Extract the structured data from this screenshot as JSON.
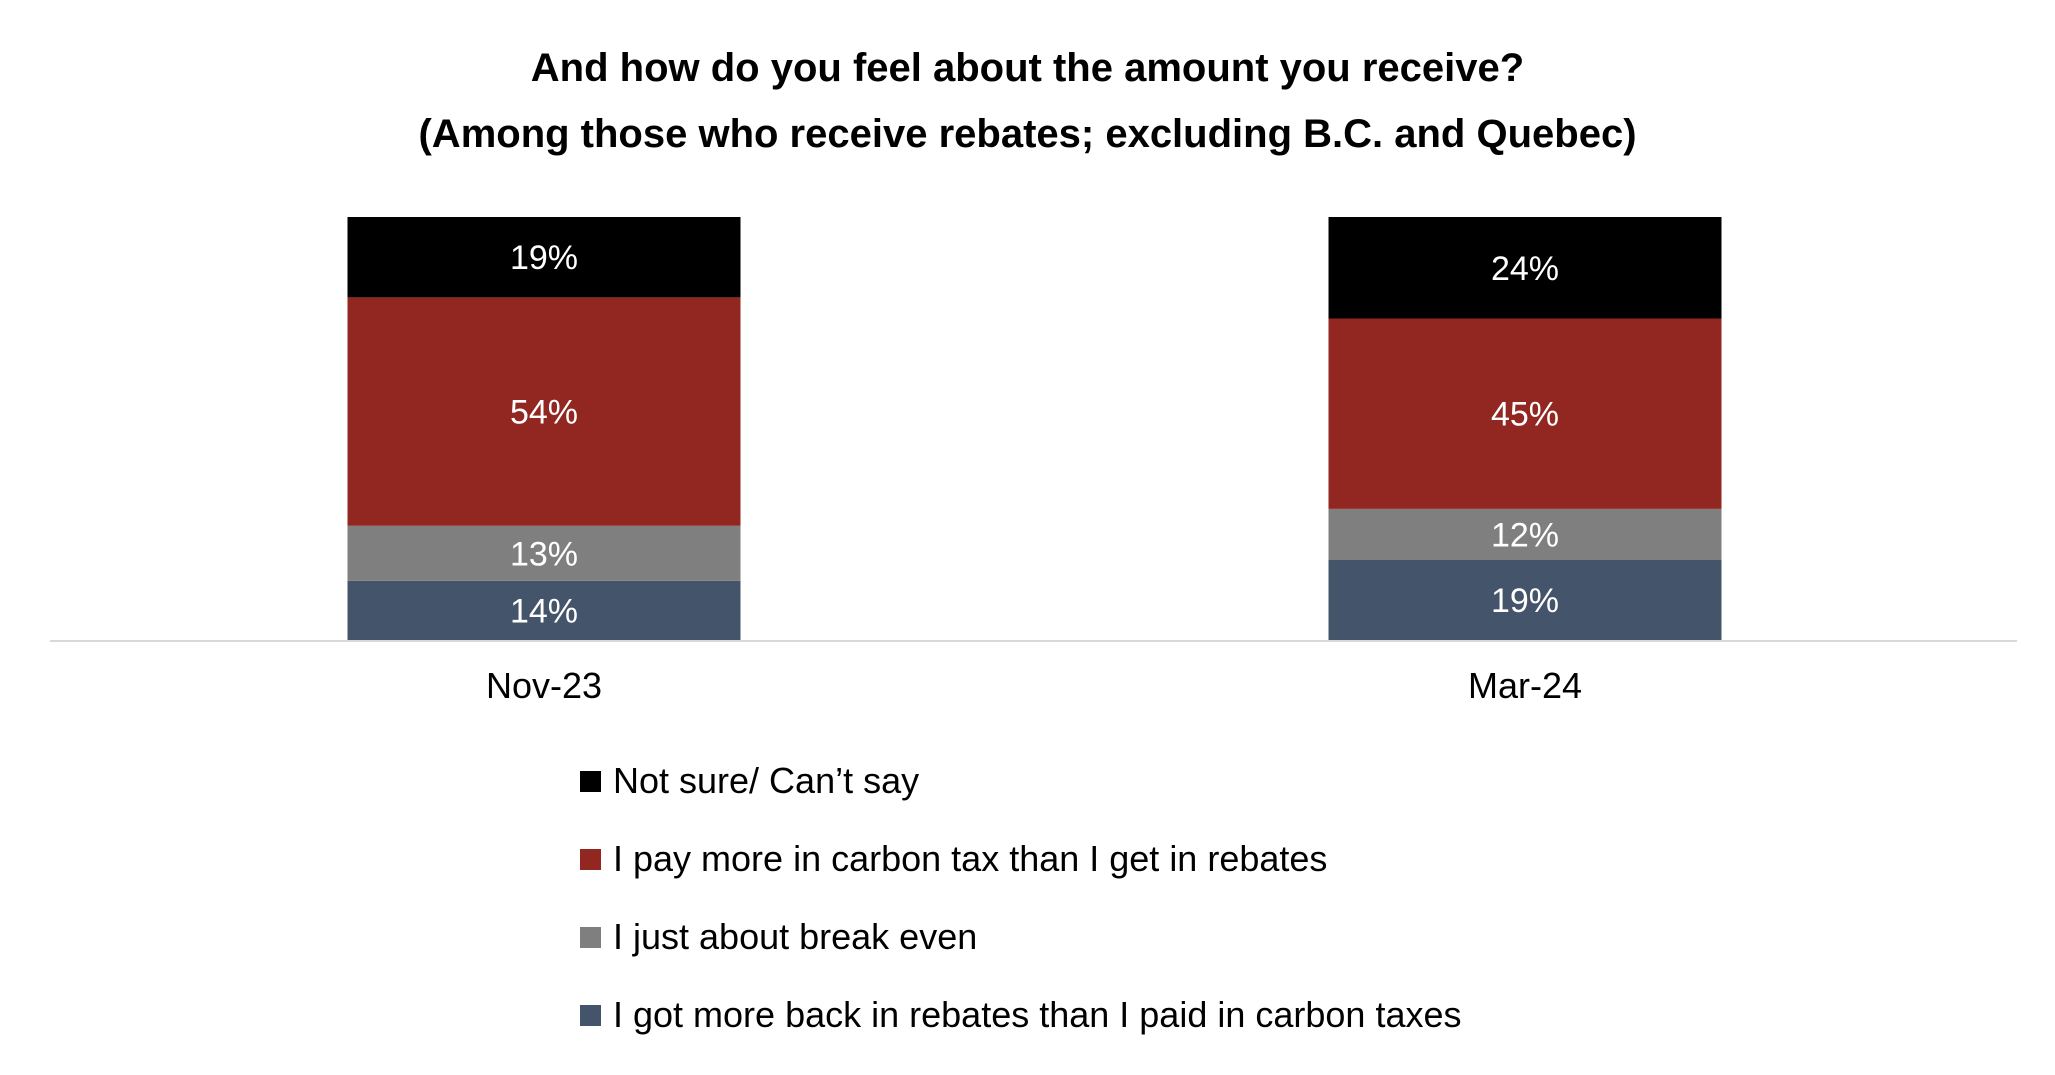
{
  "chart_data": {
    "type": "bar",
    "stacked": true,
    "title": "And how do you feel about the amount you receive?",
    "subtitle": "(Among those who receive rebates; excluding B.C. and Quebec)",
    "categories": [
      "Nov-23",
      "Mar-24"
    ],
    "series": [
      {
        "name": "I got more back in rebates than I paid in carbon taxes",
        "values": [
          14,
          19
        ],
        "labels": [
          "14%",
          "19%"
        ],
        "color": "#44546A"
      },
      {
        "name": "I just about break even",
        "values": [
          13,
          12
        ],
        "labels": [
          "13%",
          "12%"
        ],
        "color": "#7F7F7F"
      },
      {
        "name": "I pay more in carbon tax than I get in rebates",
        "values": [
          54,
          45
        ],
        "labels": [
          "54%",
          "45%"
        ],
        "color": "#922620"
      },
      {
        "name": "Not sure/ Can’t say",
        "values": [
          19,
          24
        ],
        "labels": [
          "19%",
          "24%"
        ],
        "color": "#000000"
      }
    ],
    "legend_order": [
      3,
      2,
      1,
      0
    ],
    "legend_placement": "bottom",
    "ylim": [
      0,
      100
    ],
    "grid": false,
    "xlabel": "",
    "ylabel": "",
    "axis_color": "#D9D9D9"
  }
}
